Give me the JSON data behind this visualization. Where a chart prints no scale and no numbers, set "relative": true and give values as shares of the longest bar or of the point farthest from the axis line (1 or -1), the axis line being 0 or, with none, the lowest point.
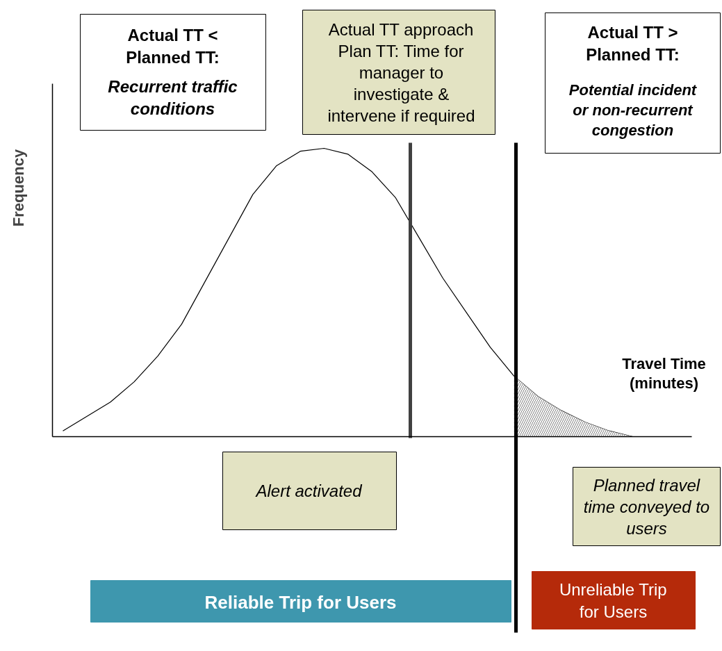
{
  "chart_data": {
    "type": "line",
    "relative": true,
    "ylabel": "Frequency",
    "xlabel": "Travel Time (minutes)",
    "categories": [
      null,
      null,
      null,
      null,
      null,
      null,
      null,
      null,
      null,
      null,
      null,
      null,
      null,
      null,
      null,
      null,
      null,
      null,
      null,
      null,
      null,
      null,
      null,
      null,
      null
    ],
    "series": [
      {
        "color": "#000000",
        "values": [
          0.02,
          0.07,
          0.12,
          0.19,
          0.28,
          0.39,
          0.54,
          0.69,
          0.84,
          0.94,
          0.99,
          1.0,
          0.98,
          0.92,
          0.83,
          0.69,
          0.55,
          0.43,
          0.31,
          0.21,
          0.14,
          0.09,
          0.05,
          0.02,
          0.0
        ]
      },
      {
        "type": "area",
        "color": "#808080",
        "values": [
          null,
          null,
          null,
          null,
          null,
          null,
          null,
          null,
          null,
          null,
          null,
          null,
          null,
          null,
          null,
          null,
          null,
          null,
          null,
          0.21,
          0.14,
          0.09,
          0.05,
          0.02,
          0.0
        ]
      }
    ],
    "annotations": [
      "Actual TT < Planned TT:",
      "Recurrent traffic conditions",
      "Actual TT approach Plan TT: Time for manager to investigate & intervene if required",
      "Actual TT > Planned TT:",
      "Potential incident or non-recurrent congestion",
      "Reliable Trip for Users",
      "Unreliable Trip for Users",
      "Alert activated",
      "Planned travel time conveyed to users"
    ]
  }
}
